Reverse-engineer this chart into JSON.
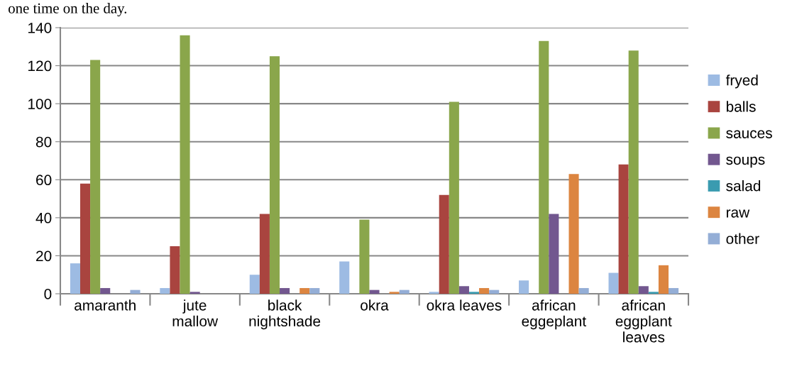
{
  "chart_data": {
    "type": "bar",
    "annotations": [
      "one time on the day."
    ],
    "categories": [
      "amaranth",
      "jute\nmallow",
      "black\nnightshade",
      "okra",
      "okra leaves",
      "african\neggeplant",
      "african\neggplant\nleaves"
    ],
    "series": [
      {
        "name": "fryed",
        "color": "#9dbbe3",
        "values": [
          16,
          3,
          10,
          17,
          1,
          7,
          11
        ]
      },
      {
        "name": "balls",
        "color": "#a9443f",
        "values": [
          58,
          25,
          42,
          0,
          52,
          0,
          68
        ]
      },
      {
        "name": "sauces",
        "color": "#8aa64b",
        "values": [
          123,
          136,
          125,
          39,
          101,
          133,
          128
        ]
      },
      {
        "name": "soups",
        "color": "#72578f",
        "values": [
          3,
          1,
          3,
          2,
          4,
          42,
          4
        ]
      },
      {
        "name": "salad",
        "color": "#3a9bb0",
        "values": [
          0,
          0,
          0,
          0,
          1,
          0,
          1
        ]
      },
      {
        "name": "raw",
        "color": "#dc8540",
        "values": [
          0,
          0,
          3,
          1,
          3,
          63,
          15
        ]
      },
      {
        "name": "other",
        "color": "#94aed6",
        "values": [
          2,
          0,
          3,
          2,
          2,
          3,
          3
        ]
      }
    ],
    "ylim": [
      0,
      140
    ],
    "yticks": [
      0,
      20,
      40,
      60,
      80,
      100,
      120,
      140
    ],
    "grid": "y",
    "legend": "right"
  }
}
